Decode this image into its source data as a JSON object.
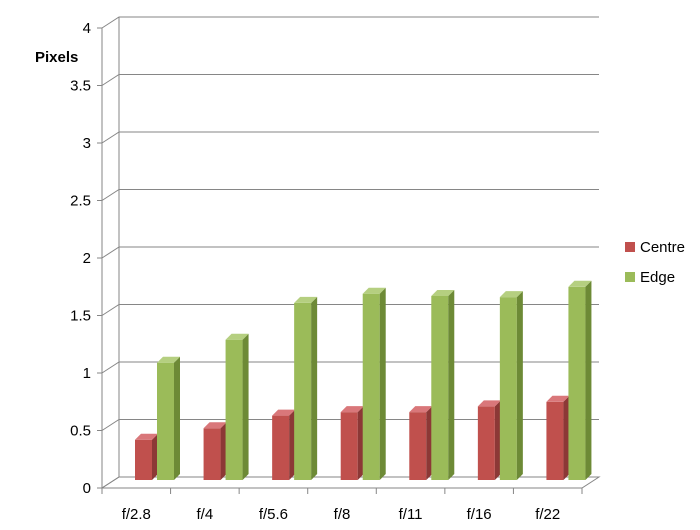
{
  "chart_data": {
    "type": "bar",
    "title": "",
    "xlabel": "",
    "ylabel": "Pixels",
    "ylim": [
      0,
      4
    ],
    "yticks": [
      "0",
      "0.5",
      "1",
      "1.5",
      "2",
      "2.5",
      "3",
      "3.5",
      "4"
    ],
    "categories": [
      "f/2.8",
      "f/4",
      "f/5.6",
      "f/8",
      "f/11",
      "f/16",
      "f/22"
    ],
    "series": [
      {
        "name": "Centre",
        "values": [
          0.35,
          0.45,
          0.56,
          0.59,
          0.59,
          0.64,
          0.68
        ],
        "color": "#c0504d",
        "top_color": "#d9777a",
        "side_color": "#8c3836"
      },
      {
        "name": "Edge",
        "values": [
          1.02,
          1.22,
          1.54,
          1.62,
          1.6,
          1.59,
          1.68
        ],
        "color": "#9bbb59",
        "top_color": "#b5cf80",
        "side_color": "#6d8a36"
      }
    ],
    "grid": true,
    "legend_position": "right",
    "style": "3d-clustered-column"
  }
}
